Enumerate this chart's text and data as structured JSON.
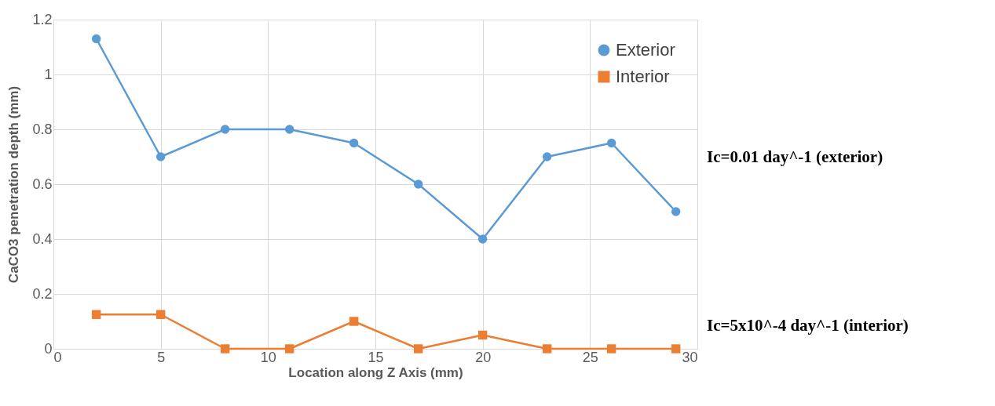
{
  "chart_data": {
    "type": "line",
    "xlabel": "Location along Z Axis (mm)",
    "ylabel": "CaCO3 penetration depth (mm)",
    "x": [
      2,
      5,
      8,
      11,
      14,
      17,
      20,
      23,
      26,
      29
    ],
    "series": [
      {
        "name": "Exterior",
        "color": "#5b9bd5",
        "marker": "circle",
        "values": [
          1.13,
          0.7,
          0.8,
          0.8,
          0.75,
          0.6,
          0.4,
          0.7,
          0.75,
          0.5
        ]
      },
      {
        "name": "Interior",
        "color": "#ed7d31",
        "marker": "square",
        "values": [
          0.125,
          0.125,
          0,
          0,
          0.1,
          0,
          0.05,
          0,
          0,
          0
        ]
      }
    ],
    "xlim": [
      0,
      30
    ],
    "xticks": [
      0,
      5,
      10,
      15,
      20,
      25,
      30
    ],
    "ylim": [
      0,
      1.2
    ],
    "yticks": [
      0,
      0.2,
      0.4,
      0.6,
      0.8,
      1,
      1.2
    ],
    "grid": true,
    "legend": "top right",
    "line_style": "solid",
    "annotations": [
      "Ic=0.01 day^-1 (exterior)",
      "Ic=5x10^-4 day^-1 (interior)"
    ]
  }
}
